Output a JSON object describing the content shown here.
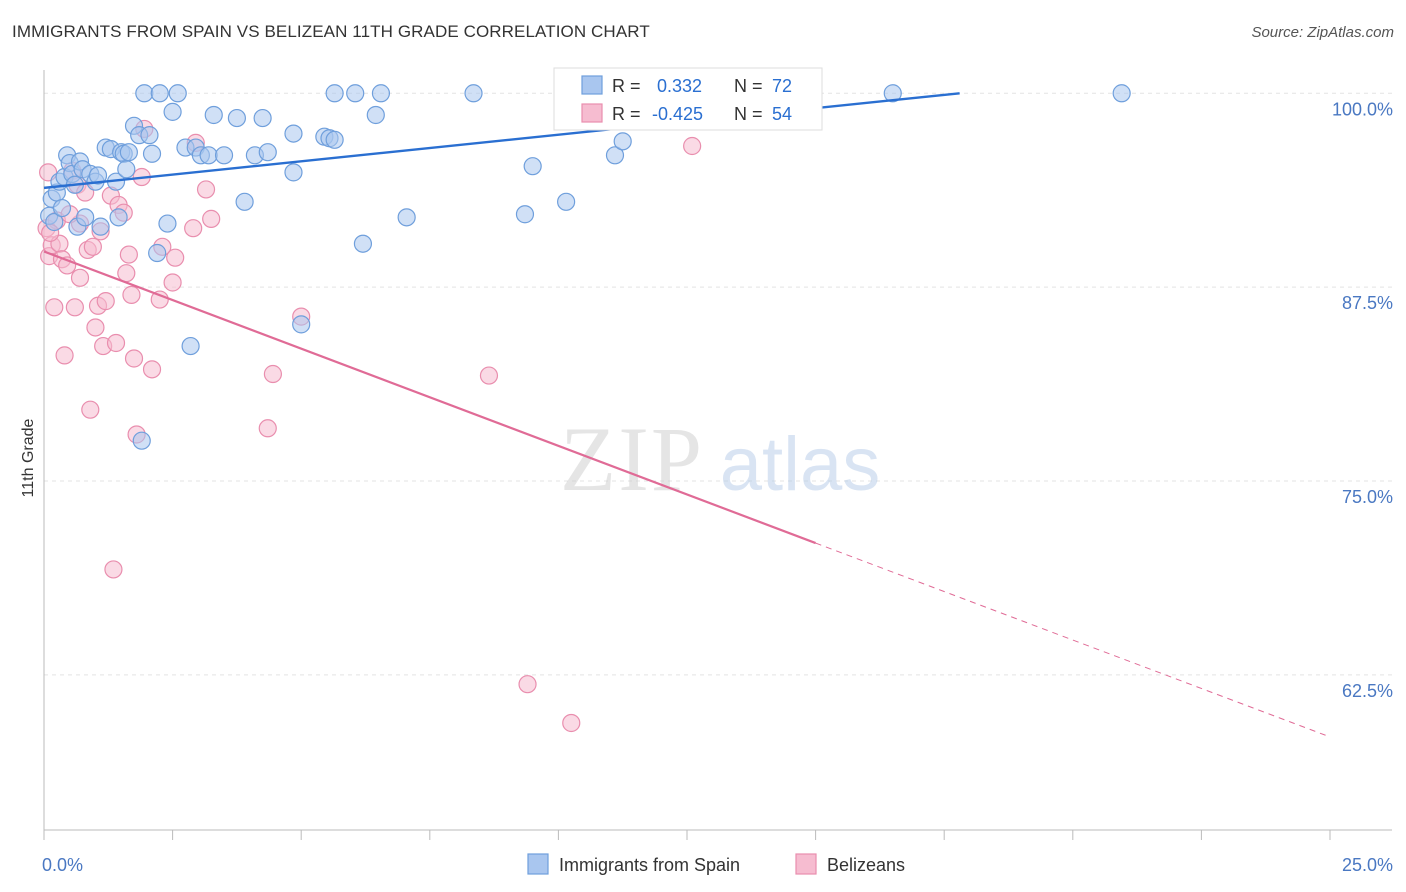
{
  "header": {
    "title": "IMMIGRANTS FROM SPAIN VS BELIZEAN 11TH GRADE CORRELATION CHART",
    "source": "Source: ZipAtlas.com"
  },
  "watermark": {
    "zip": "ZIP",
    "atlas": "atlas"
  },
  "colors": {
    "blue_fill": "#a9c6ef",
    "blue_stroke": "#6f9fdc",
    "blue_line": "#2a6fd1",
    "pink_fill": "#f6bcd0",
    "pink_stroke": "#e98eae",
    "pink_line": "#e06b96",
    "tick_label": "#4a78c2",
    "grid": "#e3e3e3"
  },
  "legend_top": {
    "rows": [
      {
        "r_label": "R =",
        "r_value": " 0.332",
        "n_label": "N =",
        "n_value": "72",
        "swatch": "blue"
      },
      {
        "r_label": "R =",
        "r_value": "-0.425",
        "n_label": "N =",
        "n_value": "54",
        "swatch": "pink"
      }
    ]
  },
  "legend_bottom": {
    "items": [
      {
        "label": "Immigrants from Spain",
        "swatch": "blue"
      },
      {
        "label": "Belizeans",
        "swatch": "pink"
      }
    ]
  },
  "chart_data": {
    "type": "scatter",
    "xlabel": "",
    "ylabel": "11th Grade",
    "xlim": [
      0,
      25
    ],
    "ylim": [
      52.5,
      101.5
    ],
    "x_tick_labels": [
      {
        "value": 0,
        "label": "0.0%"
      },
      {
        "value": 25,
        "label": "25.0%"
      }
    ],
    "y_tick_labels": [
      {
        "value": 100,
        "label": "100.0%"
      },
      {
        "value": 87.5,
        "label": "87.5%"
      },
      {
        "value": 75,
        "label": "75.0%"
      },
      {
        "value": 62.5,
        "label": "62.5%"
      }
    ],
    "grid": "horizontal dashed",
    "legend_position": "top-center",
    "series": [
      {
        "name": "Immigrants from Spain",
        "color": "blue",
        "trend": {
          "x0": 0,
          "y0": 93.9,
          "x1": 17.8,
          "y1": 100,
          "extend_to": 25,
          "extend_y": 100
        },
        "points": [
          [
            0.1,
            92.1
          ],
          [
            0.15,
            93.2
          ],
          [
            0.2,
            91.7
          ],
          [
            0.25,
            93.6
          ],
          [
            0.3,
            94.3
          ],
          [
            0.35,
            92.6
          ],
          [
            0.4,
            94.6
          ],
          [
            0.45,
            96.0
          ],
          [
            0.5,
            95.5
          ],
          [
            0.55,
            94.8
          ],
          [
            0.6,
            94.1
          ],
          [
            0.65,
            91.4
          ],
          [
            0.7,
            95.6
          ],
          [
            0.75,
            95.1
          ],
          [
            0.8,
            92.0
          ],
          [
            0.9,
            94.8
          ],
          [
            1.0,
            94.3
          ],
          [
            1.05,
            94.7
          ],
          [
            1.1,
            91.4
          ],
          [
            1.2,
            96.5
          ],
          [
            1.3,
            96.4
          ],
          [
            1.4,
            94.3
          ],
          [
            1.45,
            92.0
          ],
          [
            1.5,
            96.2
          ],
          [
            1.55,
            96.1
          ],
          [
            1.6,
            95.1
          ],
          [
            1.65,
            96.2
          ],
          [
            1.75,
            97.9
          ],
          [
            1.85,
            97.3
          ],
          [
            1.9,
            77.6
          ],
          [
            1.95,
            100.0
          ],
          [
            2.05,
            97.3
          ],
          [
            2.1,
            96.1
          ],
          [
            2.2,
            89.7
          ],
          [
            2.25,
            100.0
          ],
          [
            2.4,
            91.6
          ],
          [
            2.5,
            98.8
          ],
          [
            2.6,
            100.0
          ],
          [
            2.75,
            96.5
          ],
          [
            2.85,
            83.7
          ],
          [
            2.95,
            96.5
          ],
          [
            3.05,
            96.0
          ],
          [
            3.2,
            96.0
          ],
          [
            3.3,
            98.6
          ],
          [
            3.5,
            96.0
          ],
          [
            3.75,
            98.4
          ],
          [
            3.9,
            93.0
          ],
          [
            4.1,
            96.0
          ],
          [
            4.25,
            98.4
          ],
          [
            4.35,
            96.2
          ],
          [
            4.85,
            97.4
          ],
          [
            4.85,
            94.9
          ],
          [
            5.0,
            85.1
          ],
          [
            5.45,
            97.2
          ],
          [
            5.55,
            97.1
          ],
          [
            5.65,
            97.0
          ],
          [
            5.65,
            100.0
          ],
          [
            6.05,
            100.0
          ],
          [
            6.2,
            90.3
          ],
          [
            6.45,
            98.6
          ],
          [
            6.55,
            100.0
          ],
          [
            7.05,
            92.0
          ],
          [
            8.35,
            100.0
          ],
          [
            9.35,
            92.2
          ],
          [
            9.5,
            95.3
          ],
          [
            10.15,
            93.0
          ],
          [
            11.1,
            96.0
          ],
          [
            11.25,
            96.9
          ],
          [
            11.45,
            100.0
          ],
          [
            12.35,
            100.0
          ],
          [
            16.5,
            100.0
          ],
          [
            20.95,
            100.0
          ]
        ]
      },
      {
        "name": "Belizeans",
        "color": "pink",
        "trend": {
          "x0": 0,
          "y0": 89.8,
          "x1": 15.0,
          "y1": 71.0,
          "extend_to": 25,
          "extend_y": 58.5
        },
        "points": [
          [
            0.05,
            91.3
          ],
          [
            0.1,
            89.5
          ],
          [
            0.15,
            90.2
          ],
          [
            0.2,
            86.2
          ],
          [
            0.25,
            91.8
          ],
          [
            0.3,
            90.3
          ],
          [
            0.35,
            89.3
          ],
          [
            0.4,
            83.1
          ],
          [
            0.45,
            88.9
          ],
          [
            0.55,
            95.0
          ],
          [
            0.6,
            86.2
          ],
          [
            0.65,
            94.1
          ],
          [
            0.7,
            91.6
          ],
          [
            0.8,
            93.6
          ],
          [
            0.85,
            89.9
          ],
          [
            0.9,
            79.6
          ],
          [
            0.95,
            90.1
          ],
          [
            1.0,
            84.9
          ],
          [
            1.05,
            86.3
          ],
          [
            1.1,
            91.1
          ],
          [
            1.15,
            83.7
          ],
          [
            1.2,
            86.6
          ],
          [
            1.3,
            93.4
          ],
          [
            1.35,
            69.3
          ],
          [
            1.4,
            83.9
          ],
          [
            1.45,
            92.8
          ],
          [
            1.55,
            92.3
          ],
          [
            1.6,
            88.4
          ],
          [
            1.65,
            89.6
          ],
          [
            1.7,
            87.0
          ],
          [
            1.75,
            82.9
          ],
          [
            1.8,
            78.0
          ],
          [
            1.9,
            94.6
          ],
          [
            1.95,
            97.7
          ],
          [
            2.1,
            82.2
          ],
          [
            2.25,
            86.7
          ],
          [
            2.3,
            90.1
          ],
          [
            2.5,
            87.8
          ],
          [
            2.55,
            89.4
          ],
          [
            2.9,
            91.3
          ],
          [
            2.95,
            96.8
          ],
          [
            3.15,
            93.8
          ],
          [
            3.25,
            91.9
          ],
          [
            4.35,
            78.4
          ],
          [
            4.45,
            81.9
          ],
          [
            5.0,
            85.6
          ],
          [
            8.65,
            81.8
          ],
          [
            9.4,
            61.9
          ],
          [
            10.25,
            59.4
          ],
          [
            12.6,
            96.6
          ],
          [
            0.08,
            94.9
          ],
          [
            0.12,
            91.0
          ],
          [
            0.5,
            92.2
          ],
          [
            0.7,
            88.1
          ]
        ]
      }
    ]
  }
}
